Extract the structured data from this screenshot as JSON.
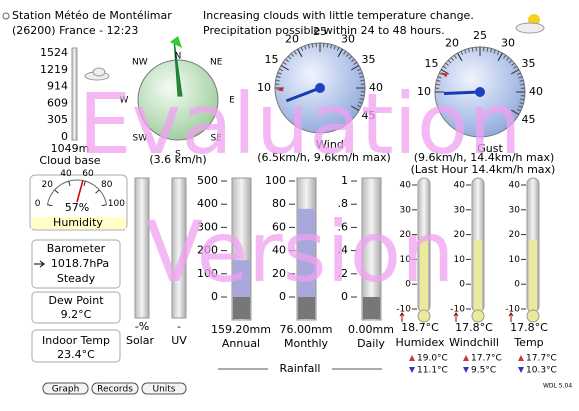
{
  "header": {
    "station": "Station Météo de Montélimar",
    "location_time": "(26200) France - 12:23",
    "forecast": [
      "Increasing clouds with little temperature change.",
      "Precipitation possible within 24 to 48 hours."
    ]
  },
  "cloud_base": {
    "scale": [
      1524,
      1219,
      914,
      609,
      305,
      0
    ],
    "value": "1049m",
    "label": "Cloud base"
  },
  "wind_direction": {
    "points": [
      "N",
      "NE",
      "E",
      "SE",
      "S",
      "SW",
      "W",
      "NW"
    ],
    "reading": "(3.6 km/h)"
  },
  "wind": {
    "scale": [
      10,
      15,
      20,
      25,
      30,
      35,
      40,
      45
    ],
    "label": "Wind",
    "reading": "(6.5km/h, 9.6km/h max)"
  },
  "gust": {
    "scale": [
      10,
      15,
      20,
      25,
      30,
      35,
      40,
      45
    ],
    "label": "Gust",
    "reading": "(9.6km/h, 14.4km/h max)",
    "last_hour": "(Last Hour 14.4km/h max)"
  },
  "humidity": {
    "scale": [
      0,
      20,
      40,
      60,
      80,
      100
    ],
    "value": "57%",
    "label": "Humidity"
  },
  "barometer": {
    "label": "Barometer",
    "value": "1018.7hPa",
    "trend": "Steady"
  },
  "dew_point": {
    "label": "Dew Point",
    "value": "9.2°C"
  },
  "indoor_temp": {
    "label": "Indoor Temp",
    "value": "23.4°C"
  },
  "solar": {
    "value": "-%",
    "label": "Solar"
  },
  "uv": {
    "value": "-",
    "label": "UV"
  },
  "rainfall": {
    "label": "Rainfall",
    "gauges": [
      {
        "scale": [
          500,
          400,
          300,
          200,
          100,
          0
        ],
        "value": "159.20mm",
        "label": "Annual"
      },
      {
        "scale": [
          100,
          80,
          60,
          40,
          20,
          0
        ],
        "value": "76.00mm",
        "label": "Monthly"
      },
      {
        "scale": [
          1,
          {
            "value": 0.8,
            "label": ".8"
          },
          {
            "value": 0.6,
            "label": ".6"
          },
          {
            "value": 0.4,
            "label": ".4"
          },
          {
            "value": 0.2,
            "label": ".2"
          },
          0
        ],
        "value": "0.00mm",
        "label": "Daily"
      }
    ]
  },
  "temperatures": {
    "scale": [
      40,
      30,
      20,
      10,
      0,
      -10
    ],
    "gauges": [
      {
        "value": "18.7°C",
        "label": "Humidex",
        "high": "19.0°C",
        "low": "11.1°C"
      },
      {
        "value": "17.8°C",
        "label": "Windchill",
        "high": "17.7°C",
        "low": "9.5°C"
      },
      {
        "value": "17.8°C",
        "label": "Temp",
        "high": "17.7°C",
        "low": "10.3°C"
      }
    ]
  },
  "buttons": [
    "Graph",
    "Records",
    "Units"
  ],
  "version": "WDL 5.04",
  "watermark": [
    "Evaluation",
    "Version"
  ]
}
